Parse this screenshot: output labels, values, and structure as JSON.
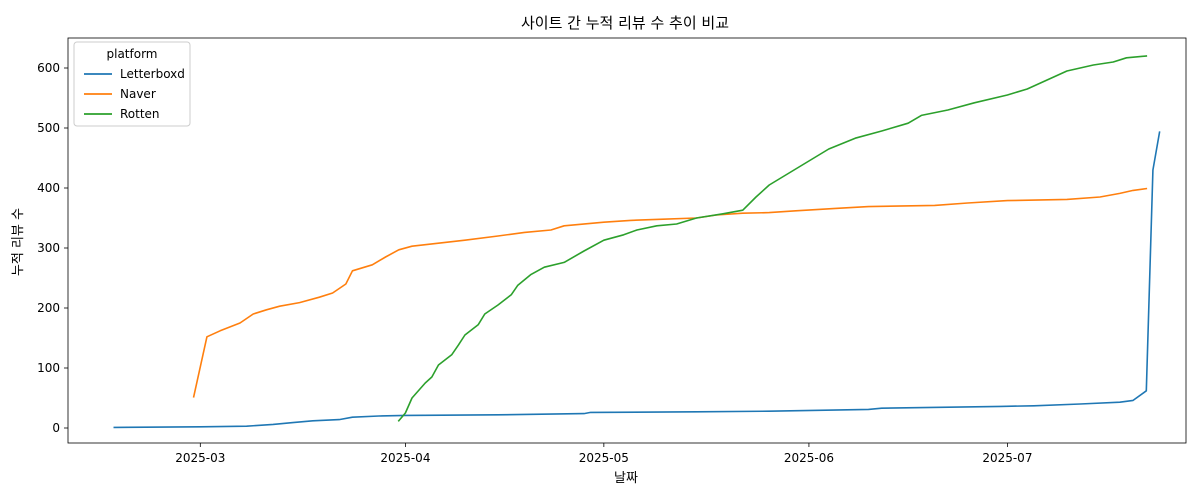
{
  "chart_data": {
    "type": "line",
    "title": "사이트 간 누적 리뷰 수 추이 비교",
    "xlabel": "날짜",
    "ylabel": "누적 리뷰 수",
    "xlim": [
      "2025-02-09",
      "2025-07-28"
    ],
    "ylim": [
      -25,
      650
    ],
    "x_ticks": [
      "2025-03-01",
      "2025-04-01",
      "2025-05-01",
      "2025-06-01",
      "2025-07-01"
    ],
    "x_tick_labels": [
      "2025-03",
      "2025-04",
      "2025-05",
      "2025-06",
      "2025-07"
    ],
    "y_ticks": [
      0,
      100,
      200,
      300,
      400,
      500,
      600
    ],
    "grid": false,
    "legend": {
      "title": "platform",
      "position": "top-left"
    },
    "series": [
      {
        "name": "Letterboxd",
        "color": "#1f77b4",
        "points": [
          [
            "2025-02-16",
            1
          ],
          [
            "2025-03-01",
            2
          ],
          [
            "2025-03-08",
            3
          ],
          [
            "2025-03-12",
            6
          ],
          [
            "2025-03-15",
            9
          ],
          [
            "2025-03-18",
            12
          ],
          [
            "2025-03-22",
            14
          ],
          [
            "2025-03-24",
            18
          ],
          [
            "2025-03-28",
            20
          ],
          [
            "2025-04-01",
            21
          ],
          [
            "2025-04-15",
            22
          ],
          [
            "2025-04-28",
            24
          ],
          [
            "2025-04-29",
            26
          ],
          [
            "2025-05-15",
            27
          ],
          [
            "2025-05-26",
            28
          ],
          [
            "2025-06-10",
            31
          ],
          [
            "2025-06-12",
            33
          ],
          [
            "2025-06-30",
            36
          ],
          [
            "2025-07-05",
            37
          ],
          [
            "2025-07-12",
            40
          ],
          [
            "2025-07-18",
            43
          ],
          [
            "2025-07-20",
            46
          ],
          [
            "2025-07-22",
            62
          ],
          [
            "2025-07-23",
            430
          ],
          [
            "2025-07-24",
            493
          ]
        ]
      },
      {
        "name": "Naver",
        "color": "#ff7f0e",
        "points": [
          [
            "2025-02-28",
            52
          ],
          [
            "2025-03-02",
            152
          ],
          [
            "2025-03-04",
            162
          ],
          [
            "2025-03-07",
            175
          ],
          [
            "2025-03-09",
            190
          ],
          [
            "2025-03-11",
            197
          ],
          [
            "2025-03-13",
            203
          ],
          [
            "2025-03-16",
            209
          ],
          [
            "2025-03-19",
            218
          ],
          [
            "2025-03-21",
            225
          ],
          [
            "2025-03-23",
            240
          ],
          [
            "2025-03-24",
            262
          ],
          [
            "2025-03-27",
            272
          ],
          [
            "2025-03-29",
            285
          ],
          [
            "2025-03-31",
            297
          ],
          [
            "2025-04-02",
            303
          ],
          [
            "2025-04-06",
            308
          ],
          [
            "2025-04-10",
            313
          ],
          [
            "2025-04-15",
            320
          ],
          [
            "2025-04-19",
            326
          ],
          [
            "2025-04-23",
            330
          ],
          [
            "2025-04-25",
            337
          ],
          [
            "2025-05-01",
            343
          ],
          [
            "2025-05-05",
            346
          ],
          [
            "2025-05-10",
            348
          ],
          [
            "2025-05-15",
            350
          ],
          [
            "2025-05-18",
            355
          ],
          [
            "2025-05-22",
            358
          ],
          [
            "2025-05-26",
            359
          ],
          [
            "2025-05-30",
            362
          ],
          [
            "2025-06-05",
            366
          ],
          [
            "2025-06-10",
            369
          ],
          [
            "2025-06-20",
            371
          ],
          [
            "2025-06-25",
            375
          ],
          [
            "2025-07-01",
            379
          ],
          [
            "2025-07-10",
            381
          ],
          [
            "2025-07-15",
            385
          ],
          [
            "2025-07-18",
            391
          ],
          [
            "2025-07-20",
            396
          ],
          [
            "2025-07-22",
            399
          ]
        ]
      },
      {
        "name": "Rotten",
        "color": "#2ca02c",
        "points": [
          [
            "2025-03-31",
            12
          ],
          [
            "2025-04-01",
            25
          ],
          [
            "2025-04-02",
            50
          ],
          [
            "2025-04-04",
            75
          ],
          [
            "2025-04-05",
            85
          ],
          [
            "2025-04-06",
            105
          ],
          [
            "2025-04-08",
            122
          ],
          [
            "2025-04-09",
            138
          ],
          [
            "2025-04-10",
            155
          ],
          [
            "2025-04-12",
            172
          ],
          [
            "2025-04-13",
            190
          ],
          [
            "2025-04-15",
            205
          ],
          [
            "2025-04-17",
            222
          ],
          [
            "2025-04-18",
            238
          ],
          [
            "2025-04-20",
            256
          ],
          [
            "2025-04-22",
            268
          ],
          [
            "2025-04-25",
            276
          ],
          [
            "2025-04-28",
            295
          ],
          [
            "2025-05-01",
            313
          ],
          [
            "2025-05-04",
            322
          ],
          [
            "2025-05-06",
            330
          ],
          [
            "2025-05-09",
            337
          ],
          [
            "2025-05-12",
            340
          ],
          [
            "2025-05-15",
            350
          ],
          [
            "2025-05-19",
            357
          ],
          [
            "2025-05-22",
            363
          ],
          [
            "2025-05-24",
            385
          ],
          [
            "2025-05-26",
            405
          ],
          [
            "2025-05-29",
            425
          ],
          [
            "2025-06-01",
            445
          ],
          [
            "2025-06-04",
            465
          ],
          [
            "2025-06-08",
            483
          ],
          [
            "2025-06-12",
            495
          ],
          [
            "2025-06-16",
            508
          ],
          [
            "2025-06-18",
            521
          ],
          [
            "2025-06-22",
            530
          ],
          [
            "2025-06-26",
            542
          ],
          [
            "2025-07-01",
            555
          ],
          [
            "2025-07-04",
            565
          ],
          [
            "2025-07-07",
            580
          ],
          [
            "2025-07-10",
            595
          ],
          [
            "2025-07-14",
            605
          ],
          [
            "2025-07-17",
            610
          ],
          [
            "2025-07-19",
            617
          ],
          [
            "2025-07-22",
            620
          ]
        ]
      }
    ]
  }
}
